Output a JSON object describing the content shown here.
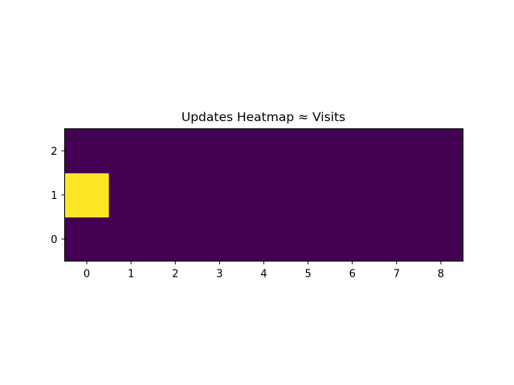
{
  "chart_data": {
    "type": "heatmap",
    "title": "Updates Heatmap ≈ Visits",
    "xlabel": "",
    "ylabel": "",
    "x_categories": [
      "0",
      "1",
      "2",
      "3",
      "4",
      "5",
      "6",
      "7",
      "8"
    ],
    "y_categories": [
      "0",
      "1",
      "2"
    ],
    "values": [
      [
        0,
        0,
        0,
        0,
        0,
        0,
        0,
        0,
        0
      ],
      [
        1,
        0,
        0,
        0,
        0,
        0,
        0,
        0,
        0
      ],
      [
        0,
        0,
        0,
        0,
        0,
        0,
        0,
        0,
        0
      ]
    ],
    "xlim": [
      -0.5,
      8.5
    ],
    "ylim": [
      -0.5,
      2.5
    ],
    "colormap": "viridis",
    "colors": {
      "low": "#440154",
      "high": "#fde725"
    },
    "grid": false,
    "legend": "none"
  }
}
